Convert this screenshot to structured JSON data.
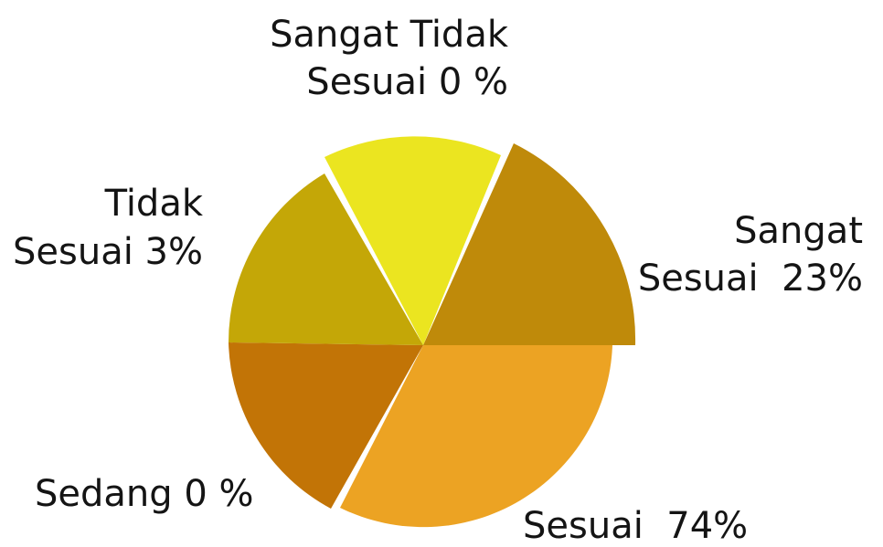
{
  "labels": [
    {
      "lines": [
        "Sangat Tidak",
        "Sesuai 0 %"
      ]
    },
    {
      "lines": [
        "Tidak",
        "Sesuai 3%"
      ]
    },
    {
      "lines": [
        "Sangat",
        "Sesuai  23%"
      ]
    },
    {
      "lines": [
        "Sedang 0 %"
      ]
    },
    {
      "lines": [
        "Sesuai  74%"
      ]
    }
  ]
}
